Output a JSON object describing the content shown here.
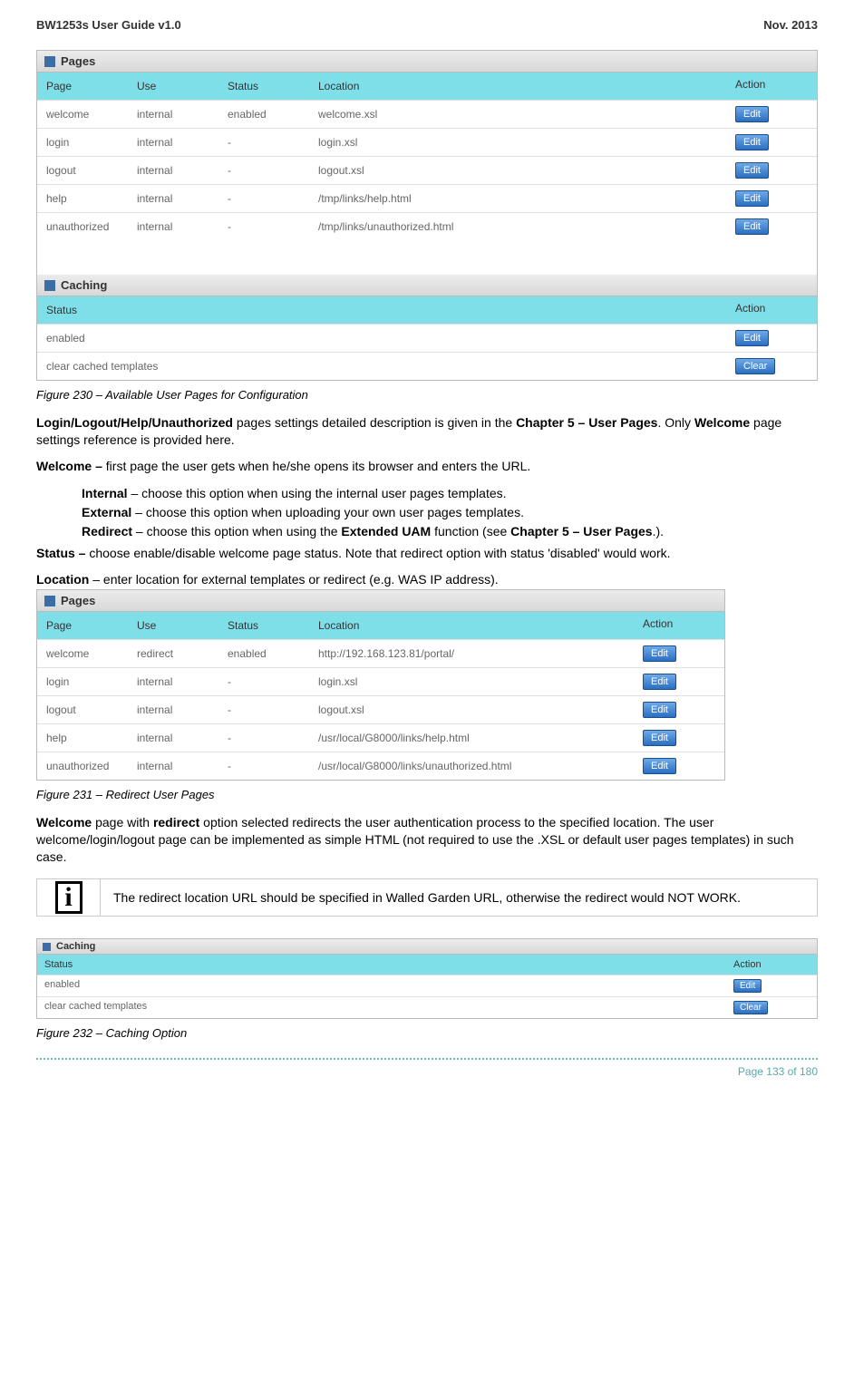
{
  "header": {
    "left": "BW1253s User Guide v1.0",
    "right": "Nov.  2013"
  },
  "pagesTable1": {
    "title": "Pages",
    "columns": [
      "Page",
      "Use",
      "Status",
      "Location",
      "Action"
    ],
    "rows": [
      {
        "page": "welcome",
        "use": "internal",
        "status": "enabled",
        "location": "welcome.xsl",
        "btn": "Edit"
      },
      {
        "page": "login",
        "use": "internal",
        "status": "-",
        "location": "login.xsl",
        "btn": "Edit"
      },
      {
        "page": "logout",
        "use": "internal",
        "status": "-",
        "location": "logout.xsl",
        "btn": "Edit"
      },
      {
        "page": "help",
        "use": "internal",
        "status": "-",
        "location": "/tmp/links/help.html",
        "btn": "Edit"
      },
      {
        "page": "unauthorized",
        "use": "internal",
        "status": "-",
        "location": "/tmp/links/unauthorized.html",
        "btn": "Edit"
      }
    ]
  },
  "cachingTable1": {
    "title": "Caching",
    "columns": [
      "Status",
      "Action"
    ],
    "rows": [
      {
        "status": "enabled",
        "btn": "Edit"
      },
      {
        "status": "clear cached templates",
        "btn": "Clear"
      }
    ]
  },
  "fig230": "Figure 230 – Available User Pages for Configuration",
  "p1": {
    "b1": "Login/Logout/Help/Unauthorized",
    "t1": " pages settings detailed description is given in the ",
    "b2": "Chapter 5 – User Pages",
    "t2": ". Only ",
    "b3": "Welcome",
    "t3": " page settings reference is provided here."
  },
  "p2": {
    "b1": "Welcome – ",
    "t1": "first page the user gets when he/she opens its browser and enters the URL."
  },
  "bullets": {
    "i1b": "Internal",
    "i1t": " – choose this option when using the internal user pages templates.",
    "i2b": "External",
    "i2t": " – choose this option when uploading your own user pages templates.",
    "i3b": "Redirect",
    "i3t1": " – choose this option when using the ",
    "i3b2": "Extended UAM",
    "i3t2": " function (see ",
    "i3b3": "Chapter 5 – User Pages",
    "i3t3": ".)."
  },
  "p3": {
    "b1": "Status – ",
    "t1": "choose enable/disable welcome page status. Note that redirect option with status 'disabled' would work."
  },
  "p4": {
    "b1": "Location",
    "t1": " – enter location for external templates or redirect (e.g. WAS IP address)."
  },
  "pagesTable2": {
    "title": "Pages",
    "columns": [
      "Page",
      "Use",
      "Status",
      "Location",
      "Action"
    ],
    "rows": [
      {
        "page": "welcome",
        "use": "redirect",
        "status": "enabled",
        "location": "http://192.168.123.81/portal/",
        "btn": "Edit"
      },
      {
        "page": "login",
        "use": "internal",
        "status": "-",
        "location": "login.xsl",
        "btn": "Edit"
      },
      {
        "page": "logout",
        "use": "internal",
        "status": "-",
        "location": "logout.xsl",
        "btn": "Edit"
      },
      {
        "page": "help",
        "use": "internal",
        "status": "-",
        "location": "/usr/local/G8000/links/help.html",
        "btn": "Edit"
      },
      {
        "page": "unauthorized",
        "use": "internal",
        "status": "-",
        "location": "/usr/local/G8000/links/unauthorized.html",
        "btn": "Edit"
      }
    ]
  },
  "fig231": "Figure 231 – Redirect User Pages",
  "p5": {
    "b1": "Welcome",
    "t1": " page with ",
    "b2": "redirect",
    "t2": " option selected redirects the user authentication process to the specified location. The user welcome/login/logout page can be implemented as simple HTML (not required to use the .XSL or default user pages templates) in such case."
  },
  "note": "The redirect location URL should be specified in Walled Garden URL, otherwise the redirect would NOT WORK.",
  "cachingTable2": {
    "title": "Caching",
    "columns": [
      "Status",
      "Action"
    ],
    "rows": [
      {
        "status": "enabled",
        "btn": "Edit"
      },
      {
        "status": "clear cached templates",
        "btn": "Clear"
      }
    ]
  },
  "fig232": "Figure 232 – Caching Option",
  "footer": "Page 133 of 180"
}
